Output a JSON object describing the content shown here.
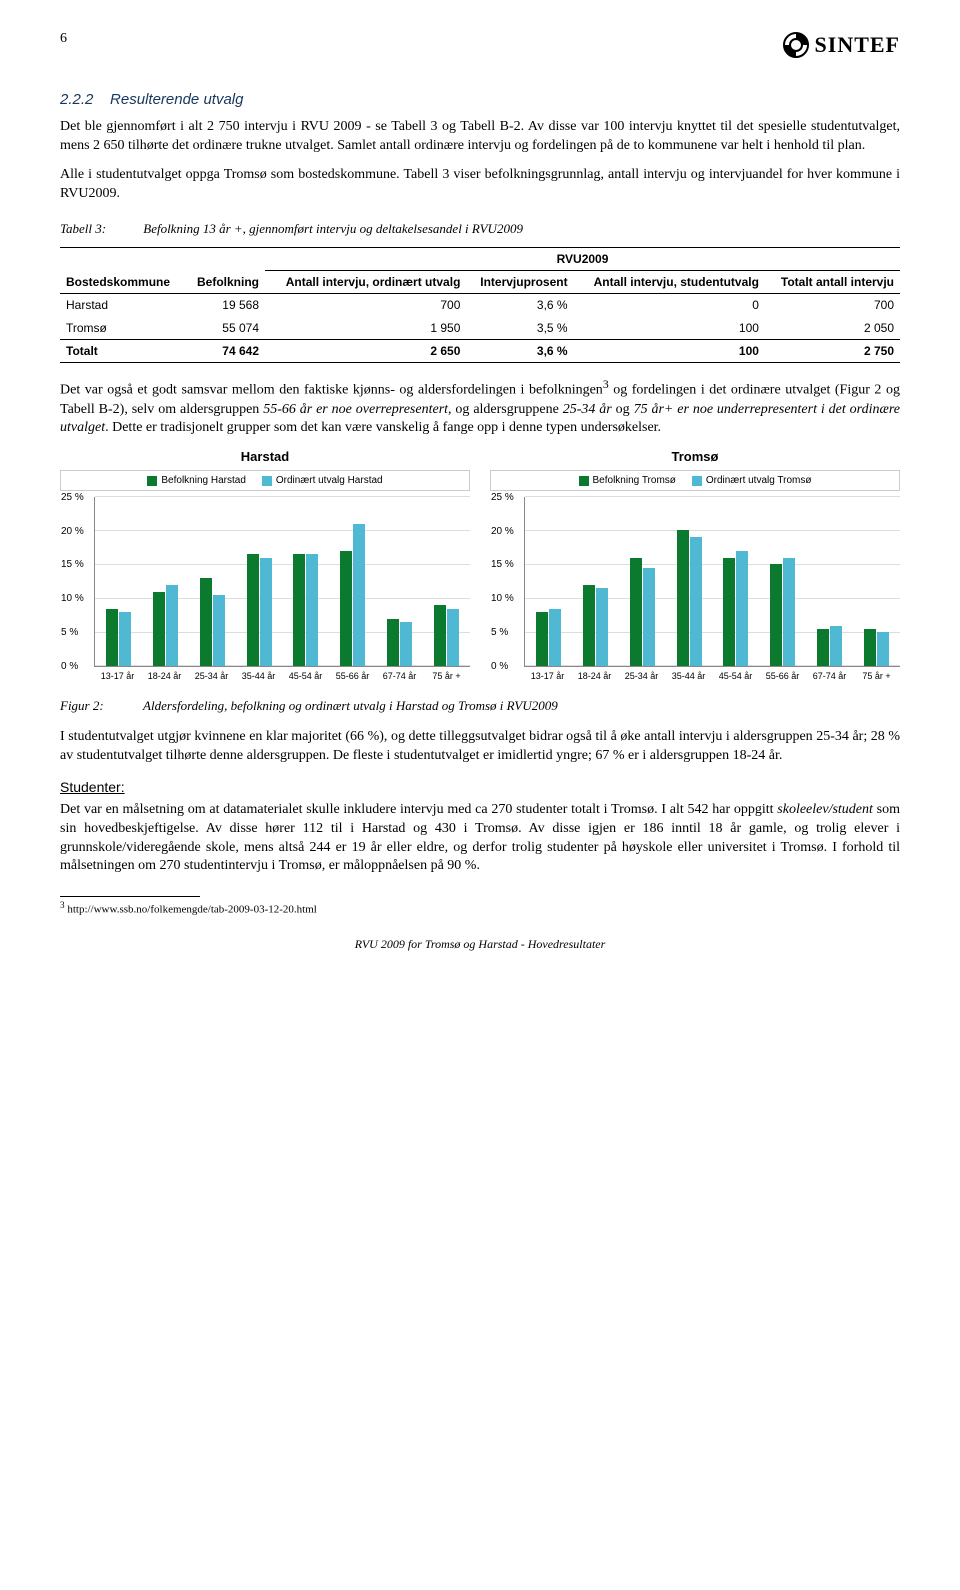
{
  "page_number": "6",
  "logo_text": "SINTEF",
  "section": {
    "num": "2.2.2",
    "title": "Resulterende utvalg"
  },
  "para1": "Det ble gjennomført i alt 2 750 intervju i RVU 2009 - se Tabell 3 og Tabell B-2. Av disse var 100 intervju knyttet til det spesielle studentutvalget, mens 2 650 tilhørte det ordinære trukne utvalget. Samlet antall ordinære intervju og fordelingen på de to kommunene var helt i henhold til plan.",
  "para2": "Alle i studentutvalget oppga Tromsø som bostedskommune. Tabell 3 viser befolkningsgrunnlag, antall intervju og intervjuandel for hver kommune i RVU2009.",
  "table_caption": {
    "label": "Tabell 3:",
    "text": "Befolkning 13 år +, gjennomført intervju og deltakelsesandel i RVU2009"
  },
  "table": {
    "super_header": "RVU2009",
    "columns": [
      "Bostedskommune",
      "Befolkning",
      "Antall intervju, ordinært utvalg",
      "Intervjuprosent",
      "Antall intervju, studentutvalg",
      "Totalt antall intervju"
    ],
    "rows": [
      [
        "Harstad",
        "19 568",
        "700",
        "3,6 %",
        "0",
        "700"
      ],
      [
        "Tromsø",
        "55 074",
        "1 950",
        "3,5 %",
        "100",
        "2 050"
      ]
    ],
    "total": [
      "Totalt",
      "74 642",
      "2 650",
      "3,6 %",
      "100",
      "2 750"
    ]
  },
  "para3a": "Det var også et godt samsvar mellom den faktiske kjønns- og aldersfordelingen i befolkningen",
  "para3b": " og fordelingen i det ordinære utvalget (Figur 2 og Tabell B-2), selv om aldersgruppen ",
  "para3c": "55-66 år er noe overrepresentert",
  "para3d": ", og aldersgruppene ",
  "para3e": "25-34 år",
  "para3f": " og ",
  "para3g": "75 år+ er noe underrepresentert i det ordinære utvalget",
  "para3h": ". Dette er tradisjonelt grupper som det kan være vanskelig å fange opp i denne typen undersøkelser.",
  "sup3": "3",
  "charts": {
    "ymax": 25,
    "yticks": [
      "0 %",
      "5 %",
      "10 %",
      "15 %",
      "20 %",
      "25 %"
    ],
    "categories": [
      "13-17 år",
      "18-24 år",
      "25-34 år",
      "35-44 år",
      "45-54 år",
      "55-66 år",
      "67-74 år",
      "75 år +"
    ],
    "colors": {
      "series1": "#0b7a2f",
      "series2": "#4fb9d3"
    },
    "harstad": {
      "title": "Harstad",
      "legend": [
        "Befolkning Harstad",
        "Ordinært utvalg Harstad"
      ],
      "s1": [
        8.5,
        11,
        13,
        16.5,
        16.5,
        17,
        7,
        9
      ],
      "s2": [
        8,
        12,
        10.5,
        16,
        16.5,
        21,
        6.5,
        8.5
      ]
    },
    "tromso": {
      "title": "Tromsø",
      "legend": [
        "Befolkning Tromsø",
        "Ordinært utvalg Tromsø"
      ],
      "s1": [
        8,
        12,
        16,
        20,
        16,
        15,
        5.5,
        5.5
      ],
      "s2": [
        8.5,
        11.5,
        14.5,
        19,
        17,
        16,
        6,
        5
      ]
    }
  },
  "fig_caption": {
    "label": "Figur 2:",
    "text": "Aldersfordeling, befolkning og ordinært utvalg i Harstad og Tromsø i RVU2009"
  },
  "para4": "I studentutvalget utgjør kvinnene en klar majoritet (66 %), og dette tilleggsutvalget bidrar også til å øke antall intervju i aldersgruppen 25-34 år; 28 % av studentutvalget tilhørte denne aldersgruppen. De fleste i studentutvalget er imidlertid yngre; 67 % er i aldersgruppen 18-24 år.",
  "subhead": "Studenter:",
  "para5a": "Det var en målsetning om at datamaterialet skulle inkludere intervju med ca 270 studenter totalt i Tromsø. I alt 542 har oppgitt ",
  "para5b": "skoleelev/student",
  "para5c": " som sin hovedbeskjeftigelse. Av disse hører 112 til i Harstad og 430 i Tromsø. Av disse igjen er 186 inntil 18 år gamle, og trolig elever i grunnskole/videregående skole, mens altså 244 er 19 år eller eldre, og derfor trolig studenter på høyskole eller universitet i Tromsø. I forhold til målsetningen om 270 studentintervju i Tromsø, er måloppnåelsen på 90 %.",
  "footnote": {
    "num": "3",
    "text": " http://www.ssb.no/folkemengde/tab-2009-03-12-20.html"
  },
  "footer": "RVU 2009 for Tromsø og Harstad - Hovedresultater"
}
